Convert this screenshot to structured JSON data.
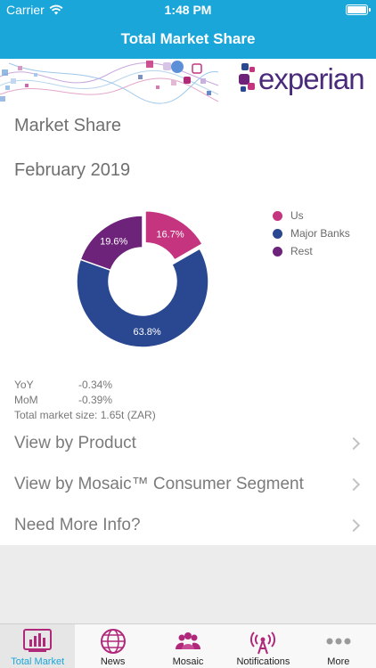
{
  "status": {
    "carrier": "Carrier",
    "time": "1:48 PM"
  },
  "nav": {
    "title": "Total Market Share"
  },
  "brand": {
    "name": "experian",
    "tm": "."
  },
  "main": {
    "title": "Market Share",
    "period": "February 2019"
  },
  "chart_data": {
    "type": "pie",
    "categories": [
      "Us",
      "Major Banks",
      "Rest"
    ],
    "values": [
      16.7,
      63.8,
      19.6
    ],
    "labels": [
      "16.7%",
      "63.8%",
      "19.6%"
    ],
    "colors": [
      "#c5357f",
      "#2a4892",
      "#6d237a"
    ],
    "title": "",
    "legend": "right"
  },
  "stats": {
    "yoy_label": "YoY",
    "yoy_value": "-0.34%",
    "mom_label": "MoM",
    "mom_value": "-0.39%",
    "total": "Total market size: 1.65t (ZAR)"
  },
  "links": [
    {
      "label": "View by Product"
    },
    {
      "label": "View by Mosaic™ Consumer Segment"
    },
    {
      "label": "Need More Info?"
    }
  ],
  "tabs": [
    {
      "label": "Total Market",
      "icon": "bar-chart-icon",
      "active": true
    },
    {
      "label": "News",
      "icon": "globe-icon"
    },
    {
      "label": "Mosaic",
      "icon": "people-icon"
    },
    {
      "label": "Notifications",
      "icon": "antenna-icon"
    },
    {
      "label": "More",
      "icon": "more-dots-icon"
    }
  ]
}
